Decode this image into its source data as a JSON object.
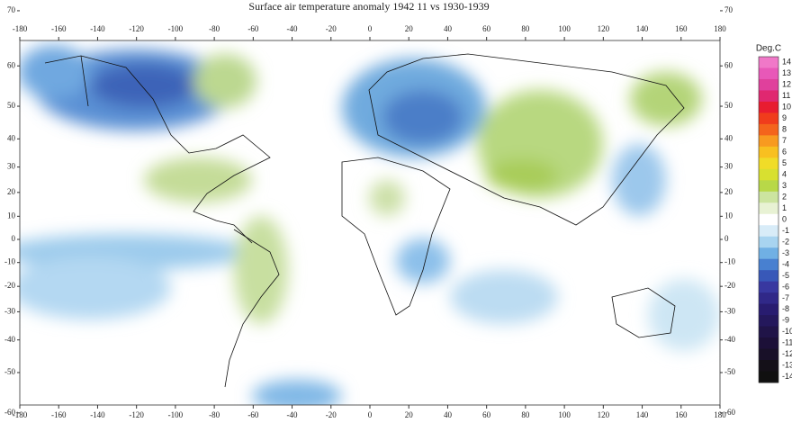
{
  "title": "Surface air temperature anomaly 1942 11 vs 1930-1939",
  "longitude_ticks": [
    -180,
    -160,
    -140,
    -120,
    -100,
    -80,
    -60,
    -40,
    -20,
    0,
    20,
    40,
    60,
    80,
    100,
    120,
    140,
    160,
    180
  ],
  "latitude_ticks": [
    70,
    60,
    50,
    40,
    30,
    20,
    10,
    0,
    -10,
    -20,
    -30,
    -40,
    -50,
    -60
  ],
  "colorbar": {
    "label": "Deg.C",
    "levels": [
      14,
      13,
      12,
      11,
      10,
      9,
      8,
      7,
      6,
      5,
      4,
      3,
      2,
      1,
      0,
      -1,
      -2,
      -3,
      -4,
      -5,
      -6,
      -7,
      -8,
      -9,
      -10,
      -11,
      -12,
      -13,
      -14
    ],
    "colors": [
      "#f078c8",
      "#e858b8",
      "#e0409c",
      "#e02870",
      "#e81c30",
      "#f03c1c",
      "#f4641c",
      "#f89a20",
      "#f8c020",
      "#f0dc28",
      "#d8e030",
      "#b8d848",
      "#cce4a0",
      "#e8f2d4",
      "#ffffff",
      "#d8ecf8",
      "#a8d4f0",
      "#70b0e4",
      "#4880d0",
      "#3858b8",
      "#3838a0",
      "#302888",
      "#281c70",
      "#24185c",
      "#201448",
      "#1c1038",
      "#181028",
      "#141018",
      "#101010"
    ]
  }
}
